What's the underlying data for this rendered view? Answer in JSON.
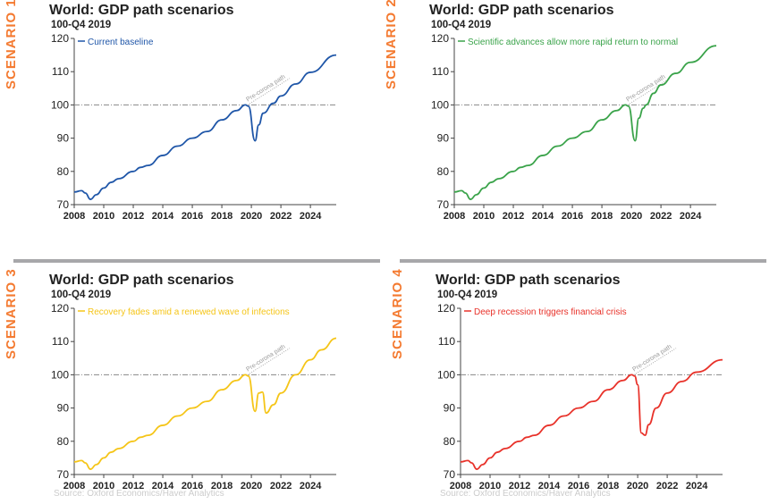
{
  "chart_data": [
    {
      "type": "line",
      "scenario_label": "SCENARIO 1",
      "title": "World: GDP path scenarios",
      "subtitle": "100-Q4 2019",
      "legend": "Current baseline",
      "color": "#1f56a8",
      "annotation": "Pre-corona path",
      "reference_line": 100,
      "ylim": [
        70,
        120
      ],
      "yticks": [
        70,
        80,
        90,
        100,
        110,
        120
      ],
      "xlim": [
        2008,
        2025.75
      ],
      "xticks": [
        2008,
        2010,
        2012,
        2014,
        2016,
        2018,
        2020,
        2022,
        2024
      ],
      "x": [
        2008,
        2008.5,
        2008.75,
        2009.1,
        2009.5,
        2010,
        2010.5,
        2011,
        2012,
        2012.5,
        2013,
        2014,
        2015,
        2016,
        2017,
        2018,
        2019,
        2019.6,
        2019.8,
        2020.25,
        2020.5,
        2020.8,
        2021.5,
        2022,
        2023,
        2024,
        2025.75
      ],
      "y": [
        73.8,
        74.2,
        73.5,
        71.6,
        73,
        75,
        76.7,
        77.8,
        80,
        81.2,
        81.8,
        84.8,
        87.6,
        90,
        92,
        95.5,
        98.3,
        100,
        99.6,
        89.2,
        94,
        97.5,
        100.5,
        102.7,
        106.3,
        109.8,
        115
      ],
      "source": ""
    },
    {
      "type": "line",
      "scenario_label": "SCENARIO 2",
      "title": "World: GDP path scenarios",
      "subtitle": "100-Q4 2019",
      "legend": "Scientific advances allow more rapid return to normal",
      "color": "#3aa34a",
      "annotation": "Pre-corona path",
      "reference_line": 100,
      "ylim": [
        70,
        120
      ],
      "yticks": [
        70,
        80,
        90,
        100,
        110,
        120
      ],
      "xlim": [
        2008,
        2025.75
      ],
      "xticks": [
        2008,
        2010,
        2012,
        2014,
        2016,
        2018,
        2020,
        2022,
        2024
      ],
      "x": [
        2008,
        2008.5,
        2008.75,
        2009.1,
        2009.5,
        2010,
        2010.5,
        2011,
        2012,
        2012.5,
        2013,
        2014,
        2015,
        2016,
        2017,
        2018,
        2019,
        2019.6,
        2019.8,
        2020.25,
        2020.5,
        2020.8,
        2021,
        2021.5,
        2022,
        2023,
        2024,
        2025.75
      ],
      "y": [
        73.8,
        74.2,
        73.5,
        71.6,
        73,
        75,
        76.7,
        77.8,
        80,
        81.2,
        81.8,
        84.8,
        87.6,
        90,
        92,
        95.5,
        98.3,
        100,
        99.6,
        89.2,
        96,
        99,
        100,
        103.5,
        106,
        109.5,
        112.8,
        117.8
      ],
      "source": ""
    },
    {
      "type": "line",
      "scenario_label": "SCENARIO 3",
      "title": "World: GDP path scenarios",
      "subtitle": "100-Q4 2019",
      "legend": "Recovery fades amid a renewed wave of infections",
      "color": "#f5c518",
      "annotation": "Pre-corona path",
      "reference_line": 100,
      "ylim": [
        70,
        120
      ],
      "yticks": [
        70,
        80,
        90,
        100,
        110,
        120
      ],
      "xlim": [
        2008,
        2025.75
      ],
      "xticks": [
        2008,
        2010,
        2012,
        2014,
        2016,
        2018,
        2020,
        2022,
        2024
      ],
      "x": [
        2008,
        2008.5,
        2008.75,
        2009.1,
        2009.5,
        2010,
        2010.5,
        2011,
        2012,
        2012.5,
        2013,
        2014,
        2015,
        2016,
        2017,
        2018,
        2019,
        2019.6,
        2019.8,
        2020.25,
        2020.5,
        2020.75,
        2021,
        2021.5,
        2022,
        2023,
        2024,
        2024.75,
        2025.75
      ],
      "y": [
        73.8,
        74.2,
        73.5,
        71.6,
        73,
        75,
        76.7,
        77.8,
        80,
        81.2,
        81.8,
        84.8,
        87.6,
        90,
        92,
        95.5,
        98.3,
        100,
        99.6,
        89,
        94.5,
        94.8,
        88.5,
        91,
        94.5,
        100,
        104.5,
        107.5,
        111
      ],
      "source": "Source: Oxford Economics/Haver Analytics"
    },
    {
      "type": "line",
      "scenario_label": "SCENARIO 4",
      "title": "World: GDP path scenarios",
      "subtitle": "100-Q4 2019",
      "legend": "Deep recession triggers financial crisis",
      "color": "#e8322a",
      "annotation": "Pre-corona path",
      "reference_line": 100,
      "ylim": [
        70,
        120
      ],
      "yticks": [
        70,
        80,
        90,
        100,
        110,
        120
      ],
      "xlim": [
        2008,
        2025.75
      ],
      "xticks": [
        2008,
        2010,
        2012,
        2014,
        2016,
        2018,
        2020,
        2022,
        2024
      ],
      "x": [
        2008,
        2008.5,
        2008.75,
        2009.1,
        2009.5,
        2010,
        2010.5,
        2011,
        2012,
        2012.5,
        2013,
        2014,
        2015,
        2016,
        2017,
        2018,
        2019,
        2019.6,
        2019.8,
        2020,
        2020.25,
        2020.5,
        2020.75,
        2021.25,
        2022,
        2023,
        2024,
        2025.75
      ],
      "y": [
        73.8,
        74.2,
        73.5,
        71.6,
        73,
        75,
        76.7,
        77.8,
        80,
        81.2,
        81.8,
        84.8,
        87.6,
        90,
        92,
        95.5,
        98.3,
        100,
        99.6,
        97,
        82.5,
        81.8,
        85,
        90,
        94.5,
        98,
        100.8,
        104.5
      ],
      "source": "Source: Oxford Economics/Haver Analytics"
    }
  ]
}
